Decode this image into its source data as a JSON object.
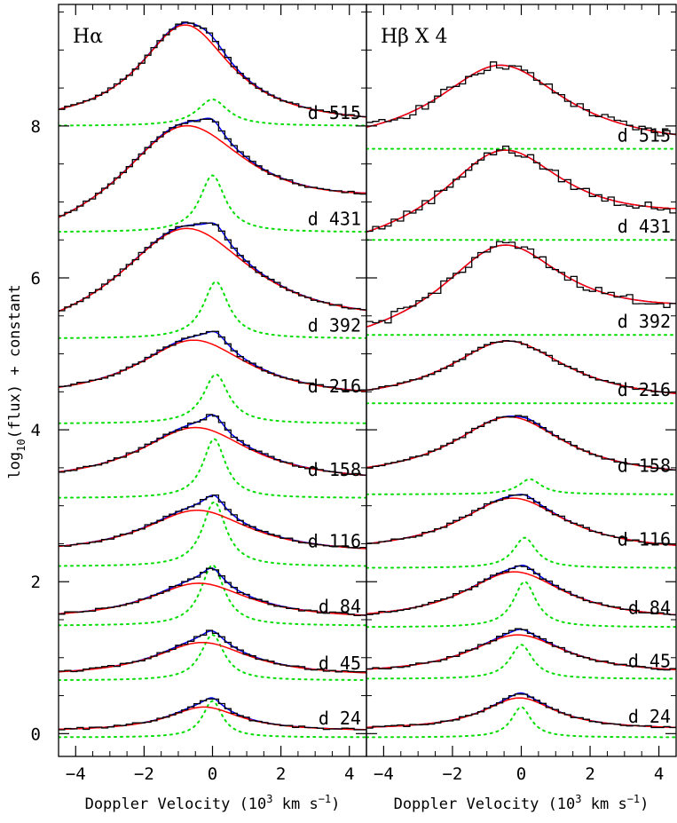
{
  "chart_data": {
    "type": "line",
    "ylabel": "log10(flux) + constant",
    "ylabel_parts": {
      "base": "log",
      "sub": "10",
      "rest": "(flux) + constant"
    },
    "xlim": [
      -4.5,
      4.5
    ],
    "ylim": [
      -0.3,
      9.6
    ],
    "x_ticks": [
      -4,
      -2,
      0,
      2,
      4
    ],
    "x_tick_labels": [
      "−4",
      "−2",
      "0",
      "2",
      "4"
    ],
    "y_ticks": [
      0,
      2,
      4,
      6,
      8
    ],
    "y_tick_labels": [
      "0",
      "2",
      "4",
      "6",
      "8"
    ],
    "grid": false,
    "series_colors": {
      "observed": "#000000",
      "model_total": "#0000ff",
      "broad": "#ff0000",
      "narrow": "#00dd00"
    },
    "panels": [
      {
        "title": "Hα",
        "xlabel": "Doppler Velocity (10",
        "xlabel_sup": "3",
        "xlabel_mid": " km s",
        "xlabel_sup2": "−1",
        "xlabel_end": ")",
        "epochs": [
          {
            "label": "d 515",
            "base": 8.0,
            "bc": -0.8,
            "bw": 1.65,
            "bh": 1.33,
            "nc": 0.0,
            "nw": 0.55,
            "nh": 0.35,
            "nb": 8.0,
            "tail": 0.0
          },
          {
            "label": "d 431",
            "base": 6.6,
            "bc": -0.85,
            "bw": 2.3,
            "bh": 1.4,
            "nc": 0.0,
            "nw": 0.45,
            "nh": 0.75,
            "nb": 6.6,
            "tail": 0.25
          },
          {
            "label": "d 392",
            "base": 5.2,
            "bc": -0.8,
            "bw": 2.45,
            "bh": 1.45,
            "nc": 0.1,
            "nw": 0.45,
            "nh": 0.75,
            "nb": 5.2,
            "tail": 0.1
          },
          {
            "label": "d 216",
            "base": 4.4,
            "bc": -0.55,
            "bw": 2.0,
            "bh": 0.78,
            "nc": 0.1,
            "nw": 0.45,
            "nh": 0.65,
            "nb": 4.08,
            "tail": 0.0
          },
          {
            "label": "d 158",
            "base": 3.3,
            "bc": -0.5,
            "bw": 2.0,
            "bh": 0.73,
            "nc": 0.05,
            "nw": 0.4,
            "nh": 0.78,
            "nb": 3.1,
            "tail": 0.0
          },
          {
            "label": "d 116",
            "base": 2.36,
            "bc": -0.45,
            "bw": 1.9,
            "bh": 0.58,
            "nc": 0.05,
            "nw": 0.42,
            "nh": 0.85,
            "nb": 2.2,
            "tail": 0.0
          },
          {
            "label": "d 84",
            "base": 1.5,
            "bc": -0.4,
            "bw": 1.8,
            "bh": 0.48,
            "nc": 0.0,
            "nw": 0.42,
            "nh": 0.8,
            "nb": 1.42,
            "tail": 0.0
          },
          {
            "label": "d 45",
            "base": 0.75,
            "bc": -0.3,
            "bw": 1.7,
            "bh": 0.45,
            "nc": 0.0,
            "nw": 0.42,
            "nh": 0.6,
            "nb": 0.7,
            "tail": 0.0
          },
          {
            "label": "d 24",
            "base": 0.03,
            "bc": -0.25,
            "bw": 1.3,
            "bh": 0.32,
            "nc": 0.0,
            "nw": 0.35,
            "nh": 0.48,
            "nb": -0.05,
            "tail": 0.0
          }
        ]
      },
      {
        "title": "Hβ X 4",
        "xlabel": "Doppler Velocity (10",
        "xlabel_sup": "3",
        "xlabel_mid": " km s",
        "xlabel_sup2": "−1",
        "xlabel_end": ")",
        "epochs": [
          {
            "label": "d 515",
            "base": 7.7,
            "bc": -0.6,
            "bw": 2.3,
            "bh": 1.1,
            "nc": 0.0,
            "nw": 0.4,
            "nh": 0.0,
            "nb": 7.7,
            "tail": 0.0
          },
          {
            "label": "d 431",
            "base": 6.5,
            "bc": -0.55,
            "bw": 2.2,
            "bh": 1.18,
            "nc": 0.0,
            "nw": 0.4,
            "nh": 0.0,
            "nb": 6.5,
            "tail": 0.2
          },
          {
            "label": "d 392",
            "base": 5.25,
            "bc": -0.55,
            "bw": 2.2,
            "bh": 1.18,
            "nc": 0.0,
            "nw": 0.4,
            "nh": 0.0,
            "nb": 5.25,
            "tail": 0.2
          },
          {
            "label": "d 216",
            "base": 4.35,
            "bc": -0.4,
            "bw": 2.1,
            "bh": 0.82,
            "nc": 0.0,
            "nw": 0.4,
            "nh": 0.0,
            "nb": 4.35,
            "tail": 0.0
          },
          {
            "label": "d 158",
            "base": 3.35,
            "bc": -0.35,
            "bw": 2.0,
            "bh": 0.82,
            "nc": 0.25,
            "nw": 0.4,
            "nh": 0.2,
            "nb": 3.15,
            "tail": 0.0
          },
          {
            "label": "d 116",
            "base": 2.38,
            "bc": -0.25,
            "bw": 1.9,
            "bh": 0.72,
            "nc": 0.1,
            "nw": 0.4,
            "nh": 0.4,
            "nb": 2.18,
            "tail": 0.0
          },
          {
            "label": "d 84",
            "base": 1.48,
            "bc": -0.2,
            "bw": 1.8,
            "bh": 0.65,
            "nc": 0.1,
            "nw": 0.4,
            "nh": 0.6,
            "nb": 1.4,
            "tail": 0.0
          },
          {
            "label": "d 45",
            "base": 0.78,
            "bc": -0.1,
            "bw": 1.7,
            "bh": 0.52,
            "nc": 0.0,
            "nw": 0.4,
            "nh": 0.45,
            "nb": 0.72,
            "tail": 0.0
          },
          {
            "label": "d 24",
            "base": 0.05,
            "bc": -0.05,
            "bw": 1.3,
            "bh": 0.42,
            "nc": 0.0,
            "nw": 0.35,
            "nh": 0.4,
            "nb": -0.05,
            "tail": 0.0
          }
        ]
      }
    ]
  }
}
